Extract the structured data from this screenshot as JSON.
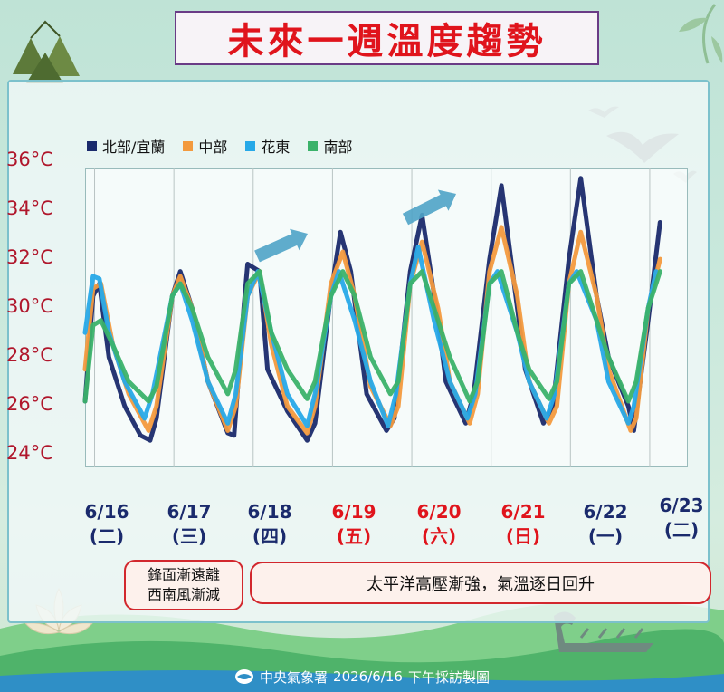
{
  "title": "未來一週溫度趨勢",
  "footer": {
    "agency": "中央氣象署",
    "date_text": "2026/6/16",
    "desc": "下午採訪製圖"
  },
  "notes": {
    "left_line1": "鋒面漸遠離",
    "left_line2": "西南風漸減",
    "right": "太平洋高壓漸強，氣溫逐日回升"
  },
  "chart_data": {
    "type": "line",
    "title": "未來一週溫度趨勢",
    "ylim": [
      23.5,
      35.7
    ],
    "yticks": [
      "36°C",
      "34°C",
      "32°C",
      "30°C",
      "28°C",
      "26°C",
      "24°C"
    ],
    "ytick_values": [
      36,
      34,
      32,
      30,
      28,
      26,
      24
    ],
    "grid": true,
    "legend_position": "top-left",
    "categories": [
      {
        "date": "6/16",
        "weekday": "(二)",
        "weekend": false
      },
      {
        "date": "6/17",
        "weekday": "(三)",
        "weekend": false
      },
      {
        "date": "6/18",
        "weekday": "(四)",
        "weekend": false
      },
      {
        "date": "6/19",
        "weekday": "(五)",
        "weekend": true
      },
      {
        "date": "6/20",
        "weekday": "(六)",
        "weekend": true
      },
      {
        "date": "6/21",
        "weekday": "(日)",
        "weekend": true
      },
      {
        "date": "6/22",
        "weekday": "(一)",
        "weekend": false
      },
      {
        "date": "6/23",
        "weekday": "(二)",
        "weekend": false
      }
    ],
    "x_day_start": 6.0,
    "x_day_end": 13.6,
    "series": [
      {
        "name": "北部/宜蘭",
        "color": "#1a2a6c",
        "x": [
          6.0,
          6.1,
          6.18,
          6.3,
          6.5,
          6.7,
          6.82,
          6.9,
          7.1,
          7.2,
          7.35,
          7.55,
          7.8,
          7.88,
          8.0,
          8.05,
          8.2,
          8.3,
          8.55,
          8.8,
          8.9,
          9.1,
          9.22,
          9.35,
          9.55,
          9.8,
          9.9,
          10.1,
          10.25,
          10.45,
          10.55,
          10.8,
          10.9,
          11.1,
          11.25,
          11.45,
          11.55,
          11.78,
          11.9,
          12.1,
          12.25,
          12.45,
          12.6,
          12.85,
          12.92,
          13.1,
          13.25
        ],
        "y": [
          26.2,
          30.5,
          31.0,
          28.0,
          26.0,
          24.8,
          24.6,
          25.5,
          30.5,
          31.5,
          30.0,
          27.0,
          24.9,
          24.8,
          30.0,
          31.8,
          31.5,
          27.5,
          25.8,
          24.6,
          25.3,
          30.6,
          33.1,
          31.5,
          26.5,
          25.0,
          25.5,
          31.5,
          33.8,
          29.5,
          27.0,
          25.3,
          26.5,
          32.0,
          35.0,
          30.0,
          27.5,
          25.3,
          26.0,
          32.0,
          35.3,
          30.5,
          28.0,
          26.0,
          25.0,
          29.5,
          33.5
        ]
      },
      {
        "name": "中部",
        "color": "#f39a3e",
        "x": [
          6.0,
          6.1,
          6.2,
          6.35,
          6.55,
          6.8,
          6.9,
          7.1,
          7.2,
          7.35,
          7.55,
          7.8,
          7.9,
          8.05,
          8.2,
          8.35,
          8.55,
          8.8,
          8.9,
          9.1,
          9.25,
          9.4,
          9.6,
          9.85,
          9.95,
          10.1,
          10.25,
          10.45,
          10.6,
          10.85,
          10.95,
          11.1,
          11.25,
          11.45,
          11.6,
          11.85,
          11.95,
          12.1,
          12.25,
          12.45,
          12.6,
          12.88,
          12.95,
          13.1,
          13.25
        ],
        "y": [
          27.5,
          30.8,
          31.0,
          28.5,
          26.5,
          25.0,
          26.0,
          30.5,
          31.3,
          30.0,
          27.0,
          25.0,
          26.0,
          30.5,
          31.5,
          28.5,
          26.0,
          24.9,
          26.0,
          31.0,
          32.3,
          30.5,
          26.8,
          25.2,
          26.0,
          31.0,
          32.7,
          30.0,
          27.0,
          25.3,
          26.5,
          31.5,
          33.3,
          30.5,
          27.0,
          25.3,
          26.0,
          31.0,
          33.1,
          30.5,
          27.5,
          25.0,
          25.5,
          30.0,
          32.0
        ]
      },
      {
        "name": "花東",
        "color": "#27a9e8",
        "x": [
          6.0,
          6.1,
          6.18,
          6.3,
          6.5,
          6.75,
          6.85,
          7.1,
          7.2,
          7.35,
          7.55,
          7.8,
          7.9,
          8.05,
          8.18,
          8.35,
          8.55,
          8.8,
          8.9,
          9.1,
          9.2,
          9.4,
          9.6,
          9.82,
          9.92,
          10.1,
          10.2,
          10.4,
          10.6,
          10.82,
          10.92,
          11.1,
          11.2,
          11.45,
          11.6,
          11.82,
          11.92,
          12.1,
          12.2,
          12.45,
          12.6,
          12.85,
          12.92,
          13.1,
          13.2
        ],
        "y": [
          29.0,
          31.3,
          31.2,
          29.0,
          27.0,
          25.5,
          26.5,
          30.5,
          31.0,
          29.5,
          27.0,
          25.3,
          26.5,
          30.5,
          31.5,
          29.0,
          26.5,
          25.2,
          26.5,
          30.5,
          31.5,
          29.5,
          27.0,
          25.2,
          26.5,
          31.0,
          32.5,
          29.5,
          27.0,
          25.5,
          26.5,
          31.0,
          31.5,
          29.0,
          27.0,
          25.5,
          26.5,
          31.0,
          31.5,
          29.5,
          27.0,
          25.3,
          26.0,
          30.0,
          31.5
        ]
      },
      {
        "name": "南部",
        "color": "#3bb26a",
        "x": [
          6.0,
          6.1,
          6.2,
          6.35,
          6.55,
          6.8,
          6.9,
          7.1,
          7.2,
          7.35,
          7.55,
          7.8,
          7.9,
          8.05,
          8.2,
          8.35,
          8.55,
          8.8,
          8.9,
          9.1,
          9.25,
          9.4,
          9.6,
          9.85,
          9.95,
          10.1,
          10.25,
          10.4,
          10.6,
          10.85,
          10.95,
          11.1,
          11.25,
          11.45,
          11.6,
          11.85,
          11.95,
          12.1,
          12.25,
          12.45,
          12.6,
          12.85,
          12.95,
          13.1,
          13.25
        ],
        "y": [
          26.2,
          29.3,
          29.5,
          28.5,
          27.0,
          26.2,
          26.8,
          30.5,
          31.0,
          30.0,
          28.0,
          26.5,
          27.5,
          31.0,
          31.5,
          29.0,
          27.5,
          26.3,
          27.0,
          30.5,
          31.5,
          30.5,
          28.0,
          26.5,
          27.0,
          31.0,
          31.5,
          30.0,
          28.0,
          26.2,
          27.0,
          31.0,
          31.5,
          29.0,
          27.5,
          26.3,
          27.0,
          31.0,
          31.5,
          29.5,
          28.0,
          26.2,
          27.0,
          30.0,
          31.5
        ]
      }
    ]
  }
}
